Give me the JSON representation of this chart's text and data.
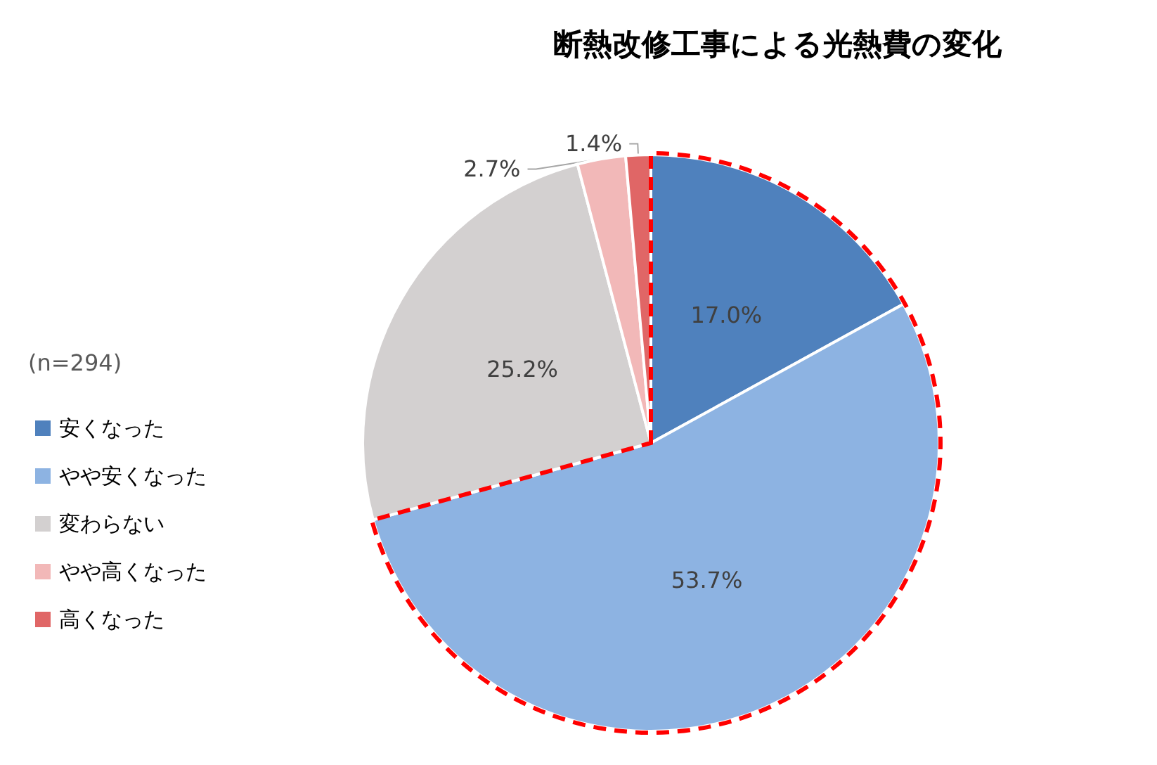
{
  "chart_data": {
    "type": "pie",
    "title": "断熱改修工事による光熱費の変化",
    "legend_title": "(n=294)",
    "categories": [
      "安くなった",
      "やや安くなった",
      "変わらない",
      "やや高くなった",
      "高くなった"
    ],
    "values": [
      17.0,
      53.7,
      25.2,
      2.7,
      1.4
    ],
    "colors": [
      "#4f81bd",
      "#8db3e2",
      "#d3d0d0",
      "#f2b8b8",
      "#e06666"
    ],
    "value_labels": [
      "17.0%",
      "53.7%",
      "25.2%",
      "2.7%",
      "1.4%"
    ],
    "legend": "left"
  }
}
